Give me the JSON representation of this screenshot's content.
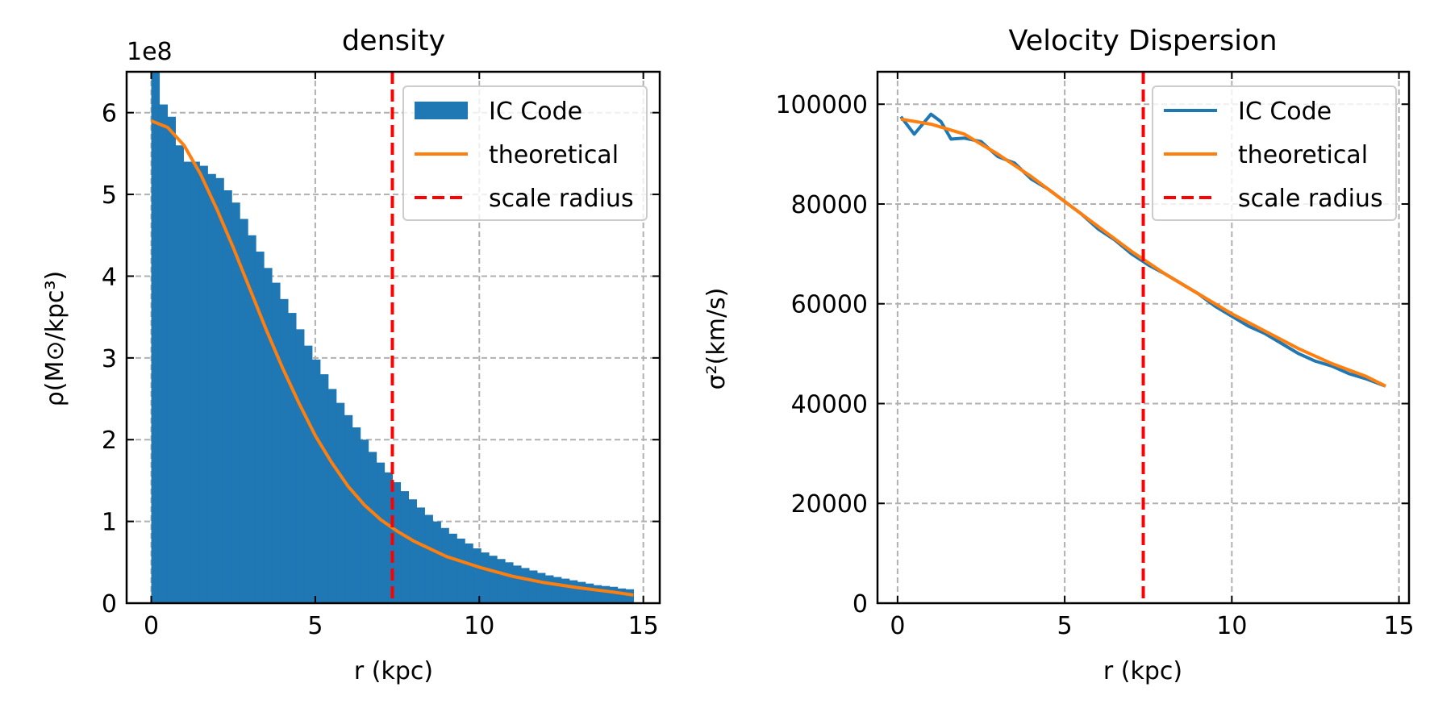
{
  "chart_data": [
    {
      "type": "bar",
      "title": "density",
      "xlabel": "r (kpc)",
      "ylabel": "ρ(M⊙/kpc³)",
      "y_offset_label": "1e8",
      "xlim": [
        -0.75,
        15.5
      ],
      "ylim": [
        0,
        6.5
      ],
      "xticks": [
        0,
        5,
        10,
        15
      ],
      "yticks": [
        0,
        1,
        2,
        3,
        4,
        5,
        6
      ],
      "grid": true,
      "legend_placement": "top-right",
      "colors": {
        "histogram": "#1f77b4",
        "theoretical": "#ff7f0e",
        "scale_radius": "#ff0000"
      },
      "histogram": {
        "name": "IC Code",
        "bin_width": 0.245,
        "bin_start": 0.0,
        "values": [
          6.9,
          6.1,
          5.95,
          5.6,
          5.4,
          5.4,
          5.35,
          5.25,
          5.2,
          5.05,
          4.9,
          4.7,
          4.5,
          4.3,
          4.1,
          3.92,
          3.72,
          3.55,
          3.35,
          3.15,
          2.98,
          2.8,
          2.62,
          2.45,
          2.3,
          2.15,
          2.0,
          1.85,
          1.72,
          1.6,
          1.48,
          1.37,
          1.27,
          1.17,
          1.08,
          1.0,
          0.92,
          0.85,
          0.79,
          0.73,
          0.67,
          0.62,
          0.58,
          0.54,
          0.5,
          0.46,
          0.43,
          0.4,
          0.37,
          0.34,
          0.32,
          0.3,
          0.28,
          0.26,
          0.24,
          0.22,
          0.21,
          0.2,
          0.18,
          0.17
        ]
      },
      "theoretical": {
        "name": "theoretical",
        "x": [
          0,
          0.5,
          1.0,
          1.5,
          2.0,
          2.5,
          3.0,
          3.5,
          4.0,
          4.5,
          5.0,
          5.5,
          6.0,
          6.5,
          7.0,
          7.5,
          8.0,
          9.0,
          10.0,
          11.0,
          12.0,
          13.0,
          14.0,
          14.7
        ],
        "y": [
          5.9,
          5.82,
          5.6,
          5.25,
          4.82,
          4.35,
          3.85,
          3.35,
          2.88,
          2.45,
          2.05,
          1.72,
          1.43,
          1.2,
          1.02,
          0.88,
          0.76,
          0.57,
          0.44,
          0.33,
          0.25,
          0.19,
          0.14,
          0.1
        ]
      },
      "scale_radius": {
        "name": "scale radius",
        "x": 7.35
      },
      "legend": [
        "IC Code",
        "theoretical",
        "scale radius"
      ]
    },
    {
      "type": "line",
      "title": "Velocity Dispersion",
      "xlabel": "r (kpc)",
      "ylabel": "σ²(km/s)",
      "xlim": [
        -0.6,
        15.3
      ],
      "ylim": [
        0,
        106500
      ],
      "xticks": [
        0,
        5,
        10,
        15
      ],
      "yticks": [
        0,
        20000,
        40000,
        60000,
        80000,
        100000
      ],
      "grid": true,
      "legend_placement": "top-right",
      "colors": {
        "ic_code": "#1f77b4",
        "theoretical": "#ff7f0e",
        "scale_radius": "#ff0000"
      },
      "series": [
        {
          "name": "IC Code",
          "x": [
            0.1,
            0.5,
            1.0,
            1.3,
            1.6,
            2.0,
            2.5,
            3.0,
            3.5,
            4.0,
            4.5,
            5.0,
            5.5,
            6.0,
            6.5,
            7.0,
            7.5,
            8.0,
            8.5,
            9.0,
            9.5,
            10.0,
            10.5,
            11.0,
            11.5,
            12.0,
            12.5,
            13.0,
            13.5,
            14.0,
            14.6
          ],
          "y": [
            97500,
            94000,
            98000,
            96500,
            93000,
            93200,
            92500,
            89500,
            88200,
            85000,
            83000,
            80500,
            78000,
            75000,
            72800,
            70000,
            67800,
            66000,
            64000,
            62000,
            59500,
            57500,
            55500,
            54000,
            52000,
            50000,
            48500,
            47500,
            46000,
            45000,
            43500
          ]
        },
        {
          "name": "theoretical",
          "x": [
            0.1,
            1.0,
            2.0,
            3.0,
            4.0,
            5.0,
            6.0,
            7.0,
            8.0,
            9.0,
            10.0,
            11.0,
            12.0,
            13.0,
            14.0,
            14.6
          ],
          "y": [
            97000,
            96000,
            94000,
            90000,
            85500,
            80500,
            75500,
            70500,
            66000,
            62000,
            58000,
            54500,
            51000,
            48000,
            45500,
            43500
          ]
        }
      ],
      "scale_radius": {
        "name": "scale radius",
        "x": 7.35
      },
      "legend": [
        "IC Code",
        "theoretical",
        "scale radius"
      ]
    }
  ]
}
